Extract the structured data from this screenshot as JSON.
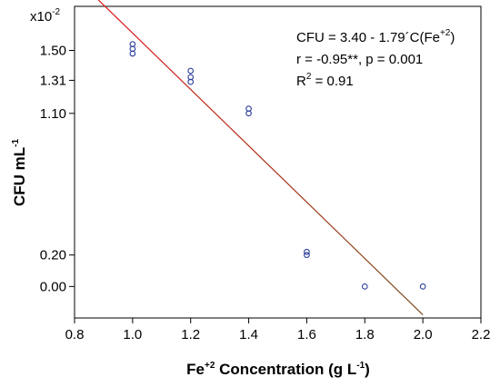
{
  "chart_data": {
    "type": "scatter",
    "xlabel": "Fe+2 Concentration (g L-1)",
    "ylabel": "CFU mL-1",
    "xlim": [
      0.8,
      2.2
    ],
    "ylim": [
      -0.2,
      1.78
    ],
    "x_ticks": [
      0.8,
      1.0,
      1.2,
      1.4,
      1.6,
      1.8,
      2.0,
      2.2
    ],
    "x_tick_labels": [
      "0.8",
      "1.0",
      "1.2",
      "1.4",
      "1.6",
      "1.8",
      "2.0",
      "2.2"
    ],
    "y_ticks": [
      0.0,
      0.2,
      1.1,
      1.31,
      1.5
    ],
    "y_tick_labels": [
      "0.00",
      "0.20",
      "1.10",
      "1.31",
      "1.50"
    ],
    "y_scale_note": "x10-2",
    "grid": false,
    "series": [
      {
        "points": [
          {
            "x": 1.0,
            "y": 1.54
          },
          {
            "x": 1.0,
            "y": 1.51
          },
          {
            "x": 1.0,
            "y": 1.48
          },
          {
            "x": 1.2,
            "y": 1.37
          },
          {
            "x": 1.2,
            "y": 1.33
          },
          {
            "x": 1.2,
            "y": 1.3
          },
          {
            "x": 1.4,
            "y": 1.13
          },
          {
            "x": 1.4,
            "y": 1.1
          },
          {
            "x": 1.6,
            "y": 0.22
          },
          {
            "x": 1.6,
            "y": 0.2
          },
          {
            "x": 1.8,
            "y": 0.0
          },
          {
            "x": 2.0,
            "y": 0.0
          }
        ],
        "marker_color": "#2b3e9a"
      }
    ],
    "regression_line": {
      "intercept": 3.4,
      "slope": -1.79,
      "x_range": [
        0.88,
        2.0
      ],
      "color_start": "#e31a1c",
      "color_end": "#7a4a1a"
    },
    "annotations": {
      "equation_main": "CFU = 3.40 - 1.79´C(Fe",
      "equation_sup": "+2",
      "equation_end": ")",
      "r_line": "r = -0.95**, p = 0.001",
      "r2_main": "R",
      "r2_sup": "2",
      "r2_end": " = 0.91"
    },
    "axis_title_parts": {
      "y_main": "CFU mL",
      "y_sup": "-1",
      "x_pre": "Fe",
      "x_sup1": "+2",
      "x_mid": " Concentration (g L",
      "x_sup2": "-1",
      "x_end": ")",
      "scale_main": "x10",
      "scale_sup": "-2"
    }
  }
}
